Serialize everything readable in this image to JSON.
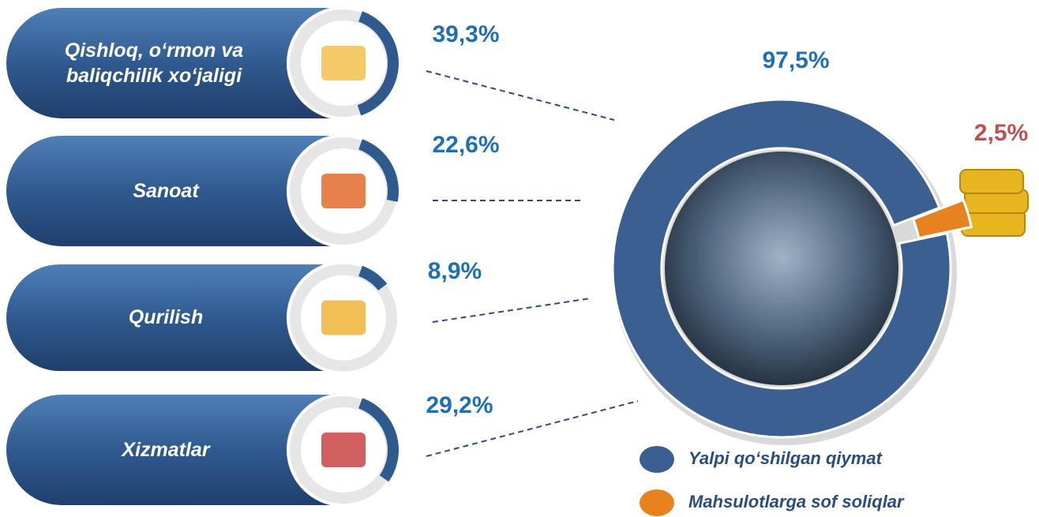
{
  "chart_data": [
    {
      "type": "donut",
      "categories": [
        "Yalpi qo‘shilgan qiymat",
        "Mahsulotlarga sof soliqlar"
      ],
      "values": [
        97.5,
        2.5
      ],
      "value_labels": [
        "97,5%",
        "2,5%"
      ],
      "colors": [
        "#3b5f90",
        "#e8821e"
      ]
    },
    {
      "type": "gauge",
      "categories": [
        "Qishloq, o‘rmon va baliqchilik xo‘jaligi",
        "Sanoat",
        "Qurilish",
        "Xizmatlar"
      ],
      "values": [
        39.3,
        22.6,
        8.9,
        29.2
      ],
      "value_labels": [
        "39,3%",
        "22,6%",
        "8,9%",
        "29,2%"
      ],
      "color": "#2e5a8e"
    }
  ]
}
